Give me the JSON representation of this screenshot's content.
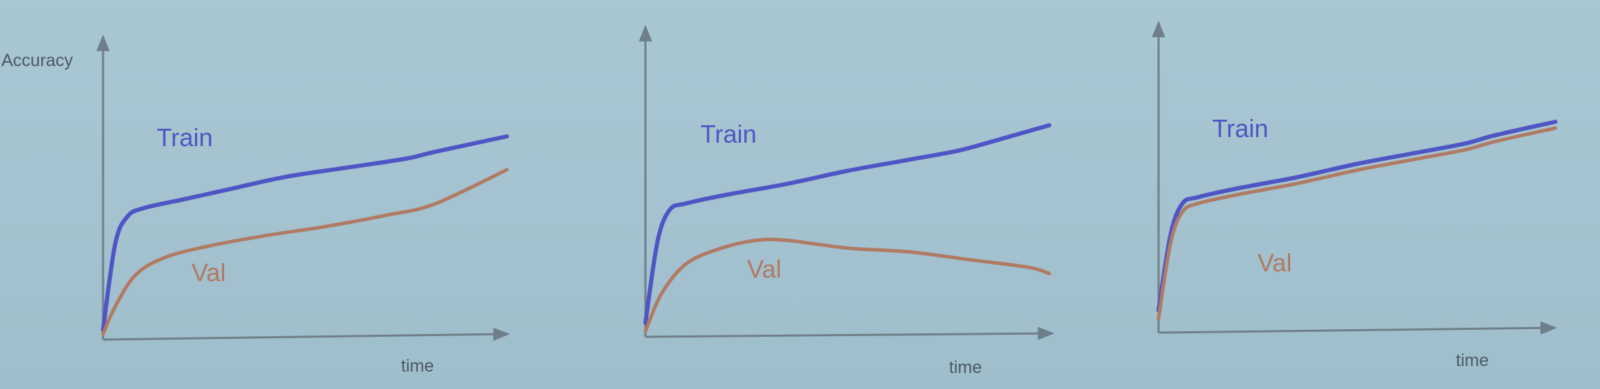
{
  "chart_data": [
    {
      "type": "line",
      "ylabel": "Accuracy",
      "xlabel": "time",
      "series": [
        {
          "name": "Train",
          "color": "#4f55c4",
          "points": [
            [
              0,
              0.04
            ],
            [
              0.03,
              0.45
            ],
            [
              0.06,
              0.58
            ],
            [
              0.1,
              0.62
            ],
            [
              0.2,
              0.66
            ],
            [
              0.3,
              0.7
            ],
            [
              0.45,
              0.76
            ],
            [
              0.6,
              0.8
            ],
            [
              0.75,
              0.84
            ],
            [
              0.82,
              0.87
            ],
            [
              1.0,
              0.94
            ]
          ]
        },
        {
          "name": "Val",
          "color": "#b07a63",
          "points": [
            [
              0,
              0.02
            ],
            [
              0.03,
              0.15
            ],
            [
              0.08,
              0.3
            ],
            [
              0.15,
              0.38
            ],
            [
              0.25,
              0.43
            ],
            [
              0.4,
              0.48
            ],
            [
              0.55,
              0.52
            ],
            [
              0.7,
              0.57
            ],
            [
              0.82,
              0.62
            ],
            [
              1.0,
              0.78
            ]
          ]
        }
      ]
    },
    {
      "type": "line",
      "xlabel": "time",
      "series": [
        {
          "name": "Train",
          "color": "#4f55c4",
          "points": [
            [
              0,
              0.06
            ],
            [
              0.03,
              0.45
            ],
            [
              0.06,
              0.6
            ],
            [
              0.1,
              0.63
            ],
            [
              0.2,
              0.67
            ],
            [
              0.35,
              0.72
            ],
            [
              0.5,
              0.78
            ],
            [
              0.65,
              0.83
            ],
            [
              0.77,
              0.87
            ],
            [
              0.85,
              0.91
            ],
            [
              1.0,
              0.99
            ]
          ]
        },
        {
          "name": "Val",
          "color": "#b07a63",
          "points": [
            [
              0,
              0.02
            ],
            [
              0.04,
              0.2
            ],
            [
              0.1,
              0.34
            ],
            [
              0.18,
              0.41
            ],
            [
              0.27,
              0.45
            ],
            [
              0.35,
              0.45
            ],
            [
              0.5,
              0.41
            ],
            [
              0.65,
              0.39
            ],
            [
              0.8,
              0.35
            ],
            [
              0.95,
              0.31
            ],
            [
              1.0,
              0.28
            ]
          ]
        }
      ]
    },
    {
      "type": "line",
      "xlabel": "time",
      "series": [
        {
          "name": "Train",
          "color": "#4f55c4",
          "points": [
            [
              0,
              0.1
            ],
            [
              0.03,
              0.46
            ],
            [
              0.06,
              0.61
            ],
            [
              0.1,
              0.64
            ],
            [
              0.2,
              0.68
            ],
            [
              0.35,
              0.73
            ],
            [
              0.5,
              0.79
            ],
            [
              0.65,
              0.84
            ],
            [
              0.77,
              0.88
            ],
            [
              0.85,
              0.92
            ],
            [
              1.0,
              0.98
            ]
          ]
        },
        {
          "name": "Val",
          "color": "#b07a63",
          "points": [
            [
              0,
              0.06
            ],
            [
              0.03,
              0.42
            ],
            [
              0.06,
              0.57
            ],
            [
              0.1,
              0.61
            ],
            [
              0.2,
              0.65
            ],
            [
              0.35,
              0.7
            ],
            [
              0.5,
              0.76
            ],
            [
              0.65,
              0.81
            ],
            [
              0.77,
              0.85
            ],
            [
              0.85,
              0.89
            ],
            [
              1.0,
              0.95
            ]
          ]
        }
      ]
    }
  ]
}
